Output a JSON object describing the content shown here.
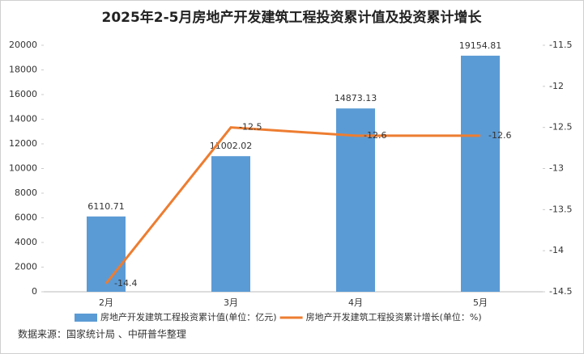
{
  "chart_data": {
    "type": "bar-line",
    "title": "2025年2-5月房地产开发建筑工程投资累计值及投资累计增长",
    "categories": [
      "2月",
      "3月",
      "4月",
      "5月"
    ],
    "series": [
      {
        "name": "房地产开发建筑工程投资累计值(单位：亿元)",
        "type": "bar",
        "color": "#5b9bd5",
        "values": [
          6110.71,
          11002.02,
          14873.13,
          19154.81
        ]
      },
      {
        "name": "房地产开发建筑工程投资累计增长(单位：%)",
        "type": "line",
        "axis": "y2",
        "color": "#ed7d31",
        "values": [
          -14.4,
          -12.5,
          -12.6,
          -12.6
        ]
      }
    ],
    "ylim": [
      0,
      20000
    ],
    "yticks": [
      0,
      2000,
      4000,
      6000,
      8000,
      10000,
      12000,
      14000,
      16000,
      18000,
      20000
    ],
    "y2lim": [
      -14.5,
      -11.5
    ],
    "y2ticks": [
      -11.5,
      -12,
      -12.5,
      -13,
      -13.5,
      -14,
      -14.5
    ],
    "legend": "bottom",
    "source": "数据来源：国家统计局 、中研普华整理"
  }
}
